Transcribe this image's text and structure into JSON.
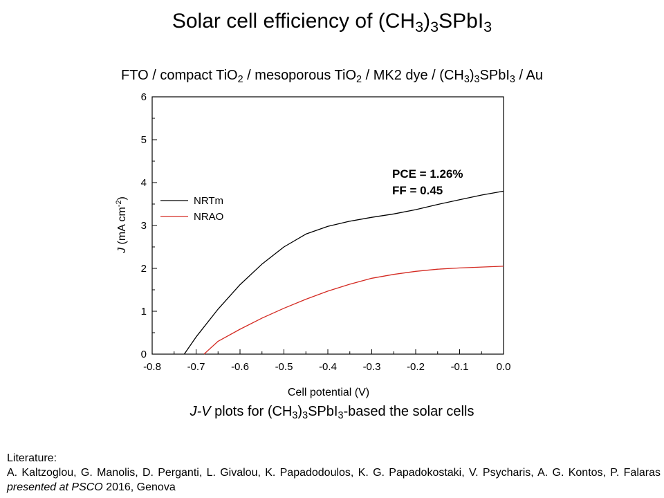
{
  "slide": {
    "title": {
      "pre": "Solar cell efficiency of (CH",
      "sub1": "3",
      "mid": ")",
      "sub2": "3",
      "post": "SPbI",
      "sub3": "3"
    },
    "device": {
      "p1": "FTO / compact TiO",
      "s1": "2",
      "p2": " / mesoporous TiO",
      "s2": "2",
      "p3": " / MK2 dye / (CH",
      "s3": "3",
      "p4": ")",
      "s4": "3",
      "p5": "SPbI",
      "s5": "3",
      "p6": " / Au"
    },
    "caption": {
      "italic": "J-V",
      "p1": " plots for (CH",
      "s1": "3",
      "p2": ")",
      "s2": "3",
      "p3": "SPbI",
      "s3": "3",
      "p4": "-based the solar cells"
    },
    "literature": {
      "heading": "Literature:",
      "authors": "A. Kaltzoglou, G. Manolis, D. Perganti, L. Givalou, K. Papadodoulos, K. G. Papadokostaki, V. Psycharis, A. G. Kontos, P. Falaras",
      "italic": "presented at PSCO",
      "tail": " 2016, Genova"
    }
  },
  "chart_data": {
    "type": "line",
    "xlabel": "Cell potential (V)",
    "ylabel": {
      "italic": "J",
      "pre": " (mA cm",
      "sup": "-2",
      "post": ")"
    },
    "xlim": [
      -0.8,
      0.0
    ],
    "ylim": [
      0,
      6
    ],
    "xticks": [
      "-0.8",
      "-0.7",
      "-0.6",
      "-0.5",
      "-0.4",
      "-0.3",
      "-0.2",
      "-0.1",
      "0.0"
    ],
    "yticks": [
      "0",
      "1",
      "2",
      "3",
      "4",
      "5",
      "6"
    ],
    "grid": false,
    "legend": "left",
    "series": [
      {
        "name": "NRTm",
        "color": "#000000",
        "x": [
          -0.727,
          -0.7,
          -0.65,
          -0.6,
          -0.55,
          -0.5,
          -0.45,
          -0.4,
          -0.35,
          -0.3,
          -0.25,
          -0.2,
          -0.15,
          -0.1,
          -0.05,
          0.0
        ],
        "y": [
          0.0,
          0.4,
          1.05,
          1.62,
          2.1,
          2.5,
          2.8,
          2.98,
          3.1,
          3.19,
          3.27,
          3.37,
          3.49,
          3.6,
          3.71,
          3.8
        ]
      },
      {
        "name": "NRAO",
        "color": "#d42a22",
        "x": [
          -0.682,
          -0.65,
          -0.6,
          -0.55,
          -0.5,
          -0.45,
          -0.4,
          -0.35,
          -0.3,
          -0.25,
          -0.2,
          -0.15,
          -0.1,
          -0.05,
          0.0
        ],
        "y": [
          0.0,
          0.3,
          0.58,
          0.84,
          1.07,
          1.28,
          1.47,
          1.63,
          1.77,
          1.86,
          1.93,
          1.98,
          2.01,
          2.03,
          2.05
        ]
      }
    ],
    "annotations": [
      "PCE = 1.26%",
      "FF = 0.45"
    ]
  }
}
